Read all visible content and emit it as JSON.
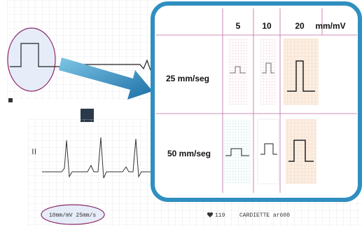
{
  "table": {
    "columns": [
      "5",
      "10",
      "20"
    ],
    "unit": "mm/mV",
    "rows": [
      "25 mm/seg",
      "50 mm/seg"
    ]
  },
  "strip": {
    "lead": "II",
    "calibration": "10mm/mV 25mm/s",
    "heart_rate": "119",
    "device": "CARDIETTE ar600"
  }
}
